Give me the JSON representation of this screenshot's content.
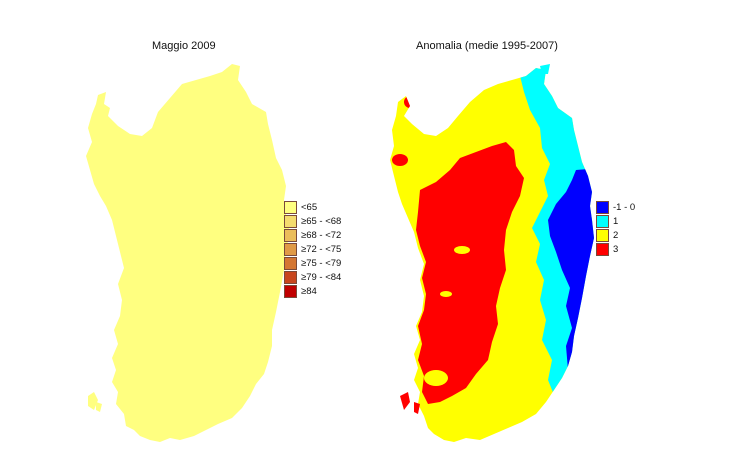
{
  "left_map": {
    "title": "Maggio 2009",
    "legend": [
      {
        "label": "<65",
        "color": "#ffff80"
      },
      {
        "label": "≥65 - <68",
        "color": "#f5dc6e"
      },
      {
        "label": "≥68 - <72",
        "color": "#ebbd5a"
      },
      {
        "label": "≥72 - <75",
        "color": "#e09a46"
      },
      {
        "label": "≥75 - <79",
        "color": "#d47632"
      },
      {
        "label": "≥79 - <84",
        "color": "#c8461e"
      },
      {
        "label": "≥84",
        "color": "#c00000"
      }
    ],
    "fill_color": "#ffff80"
  },
  "right_map": {
    "title": "Anomalia (medie 1995-2007)",
    "legend": [
      {
        "label": "-1 - 0",
        "color": "#0000ff"
      },
      {
        "label": "1",
        "color": "#00ffff"
      },
      {
        "label": "2",
        "color": "#ffff00"
      },
      {
        "label": "3",
        "color": "#ff0000"
      }
    ]
  }
}
